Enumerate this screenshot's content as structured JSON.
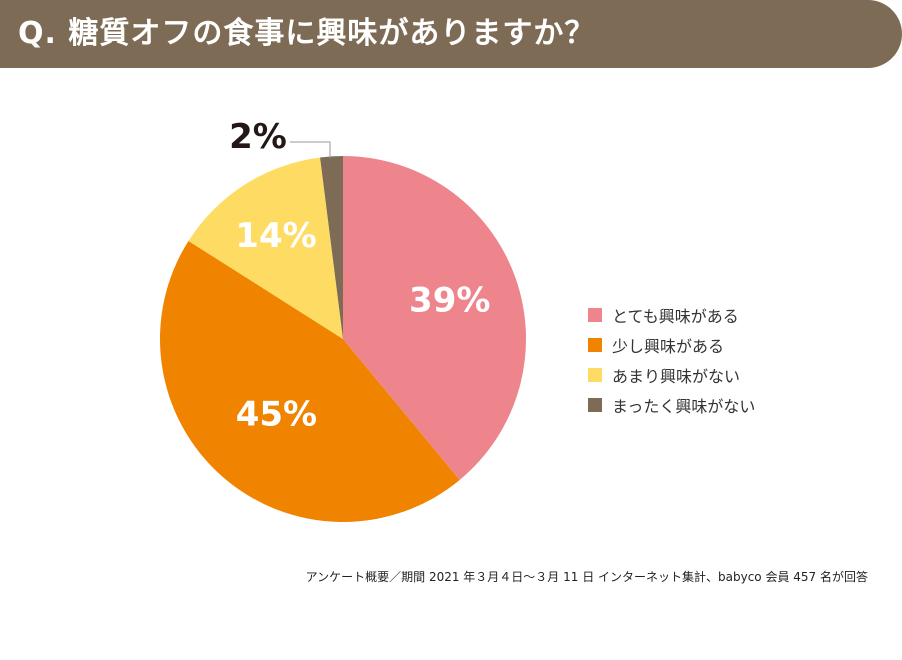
{
  "header": {
    "title": "Q. 糖質オフの食事に興味がありますか？"
  },
  "chart_data": {
    "type": "pie",
    "categories": [
      "とても興味がある",
      "少し興味がある",
      "あまり興味がない",
      "まったく興味がない"
    ],
    "values": [
      39,
      45,
      14,
      2
    ],
    "labels": [
      "39%",
      "45%",
      "14%",
      "2%"
    ],
    "colors": [
      "#ee858d",
      "#f08300",
      "#fedc63",
      "#7d6b55"
    ],
    "label_colors": [
      "#ffffff",
      "#ffffff",
      "#ffffff",
      "#231815"
    ],
    "legend_position": "right"
  },
  "footnote": "アンケート概要／期間 2021 年３月４日～３月 11 日 インターネット集計、babyco 会員 457 名が回答"
}
